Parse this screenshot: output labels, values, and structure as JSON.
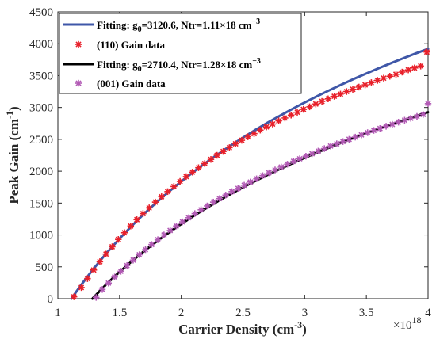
{
  "chart_data": {
    "type": "scatter",
    "xlabel": "Carrier Density (cm",
    "xlabel_sup": "-3",
    "xlabel_end": ")",
    "ylabel": "Peak Gain (cm",
    "ylabel_sup": "-1",
    "ylabel_end": ")",
    "x_exponent_base": "×10",
    "x_exponent_power": "18",
    "xlim": [
      1,
      4
    ],
    "ylim": [
      0,
      4500
    ],
    "xticks": [
      "1",
      "1.5",
      "2",
      "2.5",
      "3",
      "3.5",
      "4"
    ],
    "yticks": [
      "0",
      "500",
      "1000",
      "1500",
      "2000",
      "2500",
      "3000",
      "3500",
      "4000",
      "4500"
    ],
    "grid": false,
    "legend_position": "top-left",
    "legend": [
      {
        "text_a": "Fitting: g",
        "sub": "0",
        "text_b": "=3120.6, Ntr=1.11×18 cm",
        "sup": "−3",
        "kind": "line",
        "color": "#3f57a8"
      },
      {
        "text_a": "(110) Gain data",
        "kind": "marker",
        "color": "#e8202a"
      },
      {
        "text_a": "Fitting: g",
        "sub": "0",
        "text_b": "=2710.4, Ntr=1.28×18 cm",
        "sup": "−3",
        "kind": "line",
        "color": "#000000"
      },
      {
        "text_a": "(001) Gain data",
        "kind": "marker",
        "color": "#b25bb5"
      }
    ],
    "series": [
      {
        "name": "Fitting: g0=3120.6, Ntr=1.11×18 cm−3",
        "kind": "line",
        "color": "#3f57a8",
        "x": [
          1.11,
          1.15,
          1.2,
          1.25,
          1.3,
          1.35,
          1.4,
          1.5,
          1.6,
          1.7,
          1.8,
          1.9,
          2.0,
          2.1,
          2.2,
          2.3,
          2.4,
          2.5,
          2.6,
          2.7,
          2.8,
          2.9,
          3.0,
          3.1,
          3.2,
          3.3,
          3.4,
          3.5,
          3.6,
          3.7,
          3.8,
          3.9,
          4.0
        ],
        "y": [
          0,
          112,
          245,
          372,
          495,
          613,
          727,
          943,
          1145,
          1334,
          1512,
          1680,
          1839,
          1991,
          2134,
          2271,
          2402,
          2527,
          2647,
          2762,
          2871,
          2977,
          3078,
          3176,
          3270,
          3361,
          3449,
          3534,
          3616,
          3696,
          3773,
          3848,
          3920
        ]
      },
      {
        "name": "(110) Gain data",
        "kind": "marker",
        "color": "#e8202a",
        "x": [
          1.13,
          1.19,
          1.24,
          1.29,
          1.34,
          1.39,
          1.44,
          1.49,
          1.54,
          1.59,
          1.64,
          1.69,
          1.74,
          1.79,
          1.84,
          1.89,
          1.94,
          1.99,
          2.04,
          2.09,
          2.14,
          2.19,
          2.24,
          2.29,
          2.34,
          2.39,
          2.44,
          2.49,
          2.54,
          2.59,
          2.64,
          2.69,
          2.74,
          2.79,
          2.84,
          2.89,
          2.94,
          2.99,
          3.04,
          3.09,
          3.14,
          3.19,
          3.24,
          3.29,
          3.34,
          3.39,
          3.44,
          3.49,
          3.54,
          3.59,
          3.64,
          3.69,
          3.74,
          3.79,
          3.84,
          3.89,
          3.94,
          3.99
        ],
        "y": [
          30,
          175,
          315,
          450,
          580,
          700,
          815,
          930,
          1035,
          1140,
          1240,
          1335,
          1425,
          1515,
          1600,
          1680,
          1760,
          1840,
          1915,
          1985,
          2055,
          2120,
          2185,
          2250,
          2310,
          2370,
          2430,
          2485,
          2540,
          2590,
          2645,
          2695,
          2740,
          2790,
          2835,
          2880,
          2925,
          2970,
          3010,
          3055,
          3095,
          3135,
          3175,
          3210,
          3250,
          3285,
          3320,
          3355,
          3390,
          3425,
          3460,
          3490,
          3520,
          3555,
          3590,
          3620,
          3650,
          3870
        ]
      },
      {
        "name": "Fitting: g0=2710.4, Ntr=1.28×18 cm−3",
        "kind": "line",
        "color": "#000000",
        "x": [
          1.28,
          1.3,
          1.35,
          1.4,
          1.45,
          1.5,
          1.6,
          1.7,
          1.8,
          1.9,
          2.0,
          2.1,
          2.2,
          2.3,
          2.4,
          2.5,
          2.6,
          2.7,
          2.8,
          2.9,
          3.0,
          3.1,
          3.2,
          3.3,
          3.4,
          3.5,
          3.6,
          3.7,
          3.8,
          3.9,
          4.0
        ],
        "y": [
          0,
          42,
          142,
          238,
          330,
          420,
          589,
          748,
          897,
          1038,
          1172,
          1298,
          1418,
          1533,
          1642,
          1747,
          1847,
          1943,
          2035,
          2124,
          2210,
          2292,
          2372,
          2449,
          2524,
          2596,
          2666,
          2734,
          2800,
          2864,
          2926
        ]
      },
      {
        "name": "(001) Gain data",
        "kind": "marker",
        "color": "#b25bb5",
        "x": [
          1.31,
          1.36,
          1.41,
          1.46,
          1.51,
          1.56,
          1.61,
          1.66,
          1.71,
          1.76,
          1.81,
          1.86,
          1.91,
          1.96,
          2.01,
          2.06,
          2.11,
          2.16,
          2.21,
          2.26,
          2.31,
          2.36,
          2.41,
          2.46,
          2.51,
          2.56,
          2.61,
          2.66,
          2.71,
          2.76,
          2.81,
          2.86,
          2.91,
          2.96,
          3.01,
          3.06,
          3.11,
          3.16,
          3.21,
          3.26,
          3.31,
          3.36,
          3.41,
          3.46,
          3.51,
          3.56,
          3.61,
          3.66,
          3.71,
          3.76,
          3.81,
          3.86,
          3.91,
          3.96,
          4.0
        ],
        "y": [
          20,
          145,
          245,
          340,
          430,
          520,
          605,
          690,
          770,
          850,
          925,
          1000,
          1070,
          1140,
          1205,
          1270,
          1335,
          1395,
          1455,
          1515,
          1570,
          1625,
          1680,
          1730,
          1780,
          1830,
          1880,
          1930,
          1975,
          2020,
          2065,
          2110,
          2155,
          2195,
          2235,
          2275,
          2315,
          2355,
          2395,
          2430,
          2465,
          2500,
          2535,
          2570,
          2605,
          2640,
          2670,
          2705,
          2735,
          2770,
          2800,
          2830,
          2860,
          2890,
          3060
        ]
      }
    ]
  }
}
